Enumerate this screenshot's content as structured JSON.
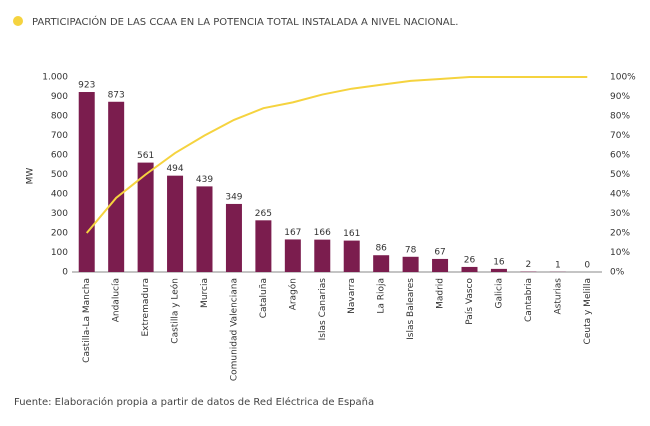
{
  "chart_data": {
    "type": "bar",
    "legend_title": "PARTICIPACIÓN DE LAS CCAA EN LA POTENCIA TOTAL INSTALADA A NIVEL NACIONAL.",
    "ylabel": "MW",
    "source": "Fuente: Elaboración propia a partir de datos de Red Eléctrica de España",
    "categories": [
      "Castilla-La Mancha",
      "Andalucía",
      "Extremadura",
      "Castilla y León",
      "Murcia",
      "Comunidad Valenciana",
      "Cataluña",
      "Aragón",
      "Islas Canarias",
      "Navarra",
      "La Rioja",
      "Islas Baleares",
      "Madrid",
      "País Vasco",
      "Galicia",
      "Cantabria",
      "Asturias",
      "Ceuta y Melilla"
    ],
    "values": [
      923,
      873,
      561,
      494,
      439,
      349,
      265,
      167,
      166,
      161,
      86,
      78,
      67,
      26,
      16,
      2,
      1,
      0
    ],
    "color": "#7b1d4e",
    "series": [
      {
        "name": "PARTICIPACIÓN DE LAS CCAA EN LA POTENCIA TOTAL INSTALADA A NIVEL NACIONAL.",
        "type": "line",
        "axis": "y2",
        "color": "#f5d33f",
        "values": [
          20,
          38,
          50,
          61,
          70,
          78,
          84,
          87,
          91,
          94,
          96,
          98,
          99,
          100,
          100,
          100,
          100,
          100
        ]
      }
    ],
    "ylim": [
      0,
      1000
    ],
    "yticks": [
      0,
      100,
      200,
      300,
      400,
      500,
      600,
      700,
      800,
      900,
      {
        "value": 1000,
        "label": "1.000"
      }
    ],
    "y2lim": [
      0,
      100
    ],
    "y2ticks": [
      {
        "value": 0,
        "label": "0%"
      },
      {
        "value": 10,
        "label": "10%"
      },
      {
        "value": 20,
        "label": "20%"
      },
      {
        "value": 30,
        "label": "30%"
      },
      {
        "value": 40,
        "label": "40%"
      },
      {
        "value": 50,
        "label": "50%"
      },
      {
        "value": 60,
        "label": "60%"
      },
      {
        "value": 70,
        "label": "70%"
      },
      {
        "value": 80,
        "label": "80%"
      },
      {
        "value": 90,
        "label": "90%"
      },
      {
        "value": 100,
        "label": "100%"
      }
    ]
  }
}
